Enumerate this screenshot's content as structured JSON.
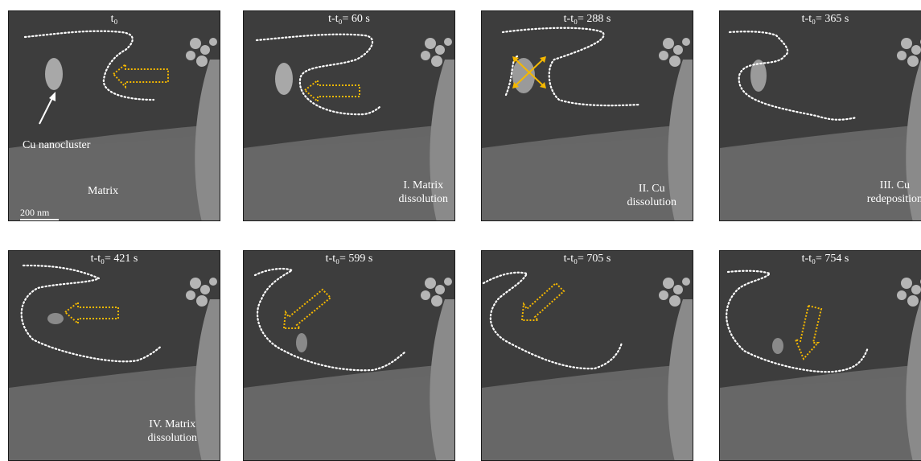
{
  "figure": {
    "panels": [
      {
        "id": "p1",
        "title": "t₀",
        "annotation": []
      },
      {
        "id": "p2",
        "title": "t-t₀= 60 s",
        "annotation": [
          "I. Matrix",
          "dissolution"
        ]
      },
      {
        "id": "p3",
        "title": "t-t₀= 288 s",
        "annotation": [
          "II. Cu",
          "dissolution"
        ]
      },
      {
        "id": "p4",
        "title": "t-t₀= 365 s",
        "annotation": [
          "III. Cu",
          "redeposition"
        ]
      },
      {
        "id": "p5",
        "title": "t-t₀= 421 s",
        "annotation": [
          "IV. Matrix",
          "dissolution"
        ]
      },
      {
        "id": "p6",
        "title": "t-t₀= 599 s",
        "annotation": []
      },
      {
        "id": "p7",
        "title": "t-t₀= 705 s",
        "annotation": []
      },
      {
        "id": "p8",
        "title": "t-t₀= 754 s",
        "annotation": []
      }
    ],
    "cu_nanocluster_label": "Cu nanocluster",
    "matrix_label": "Matrix",
    "scale_bar_label": "200 nm"
  },
  "colors": {
    "arrow": "#f5b800",
    "outline": "#ffffff",
    "background_dark": "#3e3e3e",
    "background_light": "#7a7a7a"
  }
}
